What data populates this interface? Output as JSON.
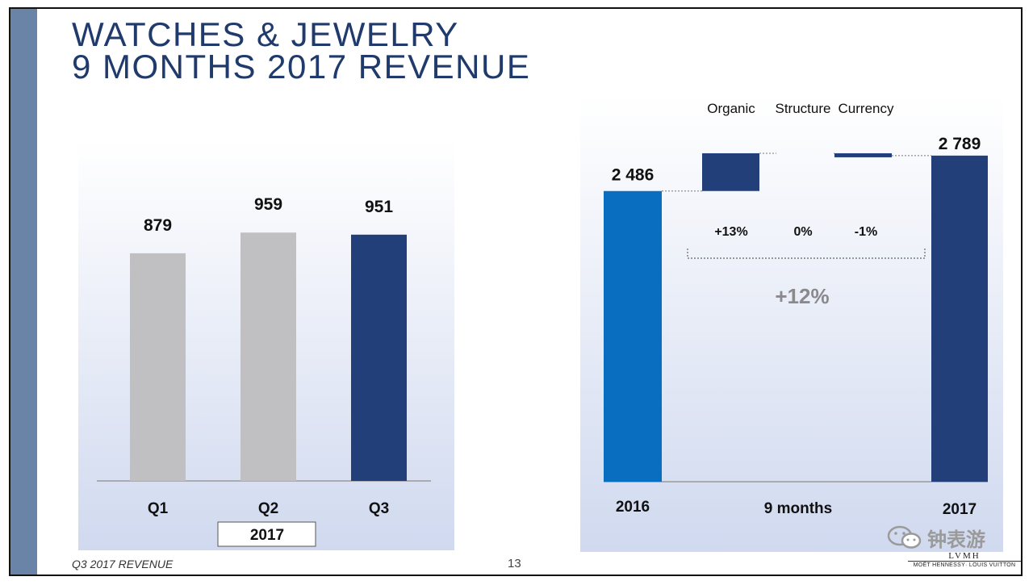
{
  "title": {
    "line1": "WATCHES & JEWELRY",
    "line2": "9 MONTHS 2017 REVENUE"
  },
  "footer": {
    "label": "Q3 2017 REVENUE",
    "page": "13"
  },
  "watermark": {
    "text": "钟表游"
  },
  "logo": {
    "name": "LVMH",
    "sub": "MOËT HENNESSY· LOUIS VUITTON"
  },
  "colors": {
    "gray": "#c0bfc1",
    "navy": "#223f7a",
    "blue": "#0a6ec0",
    "sidebar": "#6a84a8"
  },
  "chart_data": [
    {
      "type": "bar",
      "categories": [
        "Q1",
        "Q2",
        "Q3"
      ],
      "values": [
        879,
        959,
        951
      ],
      "labels": [
        "879",
        "959",
        "951"
      ],
      "bar_colors": [
        "#c0bfc1",
        "#c0bfc1",
        "#223f7a"
      ],
      "group_label": "2017",
      "ylim": [
        0,
        1100
      ]
    },
    {
      "type": "waterfall",
      "start": {
        "label": "2016",
        "value": 2486,
        "text": "2 486"
      },
      "end": {
        "label": "2017",
        "value": 2789,
        "text": "2 789"
      },
      "steps": [
        {
          "name": "Organic",
          "change_text": "+13%",
          "value": 323
        },
        {
          "name": "Structure",
          "change_text": "0%",
          "value": 0
        },
        {
          "name": "Currency",
          "change_text": "-1%",
          "value": -20
        }
      ],
      "total_change_text": "+12%",
      "period_label": "9 months",
      "ylim": [
        0,
        2850
      ]
    }
  ]
}
